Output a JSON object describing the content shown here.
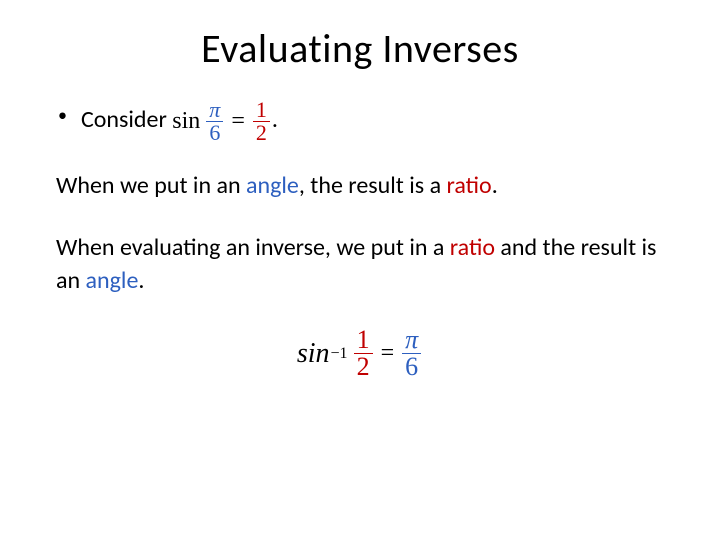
{
  "title": "Evaluating Inverses",
  "colors": {
    "angle": "#2d5fbf",
    "ratio": "#c00000",
    "text": "#000000"
  },
  "bullet": {
    "lead": "Consider ",
    "sin": "sin",
    "angle_num": "π",
    "angle_den": "6",
    "equals": "=",
    "ratio_num": "1",
    "ratio_den": "2",
    "period": "."
  },
  "p1": {
    "pre": "When we put in an ",
    "angle": "angle",
    "mid": ", the result is a ",
    "ratio": "ratio",
    "post": "."
  },
  "p2": {
    "pre": "When evaluating an inverse, we put in a ",
    "ratio": "ratio",
    "mid": " and the result is an ",
    "angle": "angle",
    "post": "."
  },
  "eq": {
    "sin": "sin",
    "exp": "−1",
    "ratio_num": "1",
    "ratio_den": "2",
    "equals": "=",
    "angle_num": "π",
    "angle_den": "6"
  }
}
